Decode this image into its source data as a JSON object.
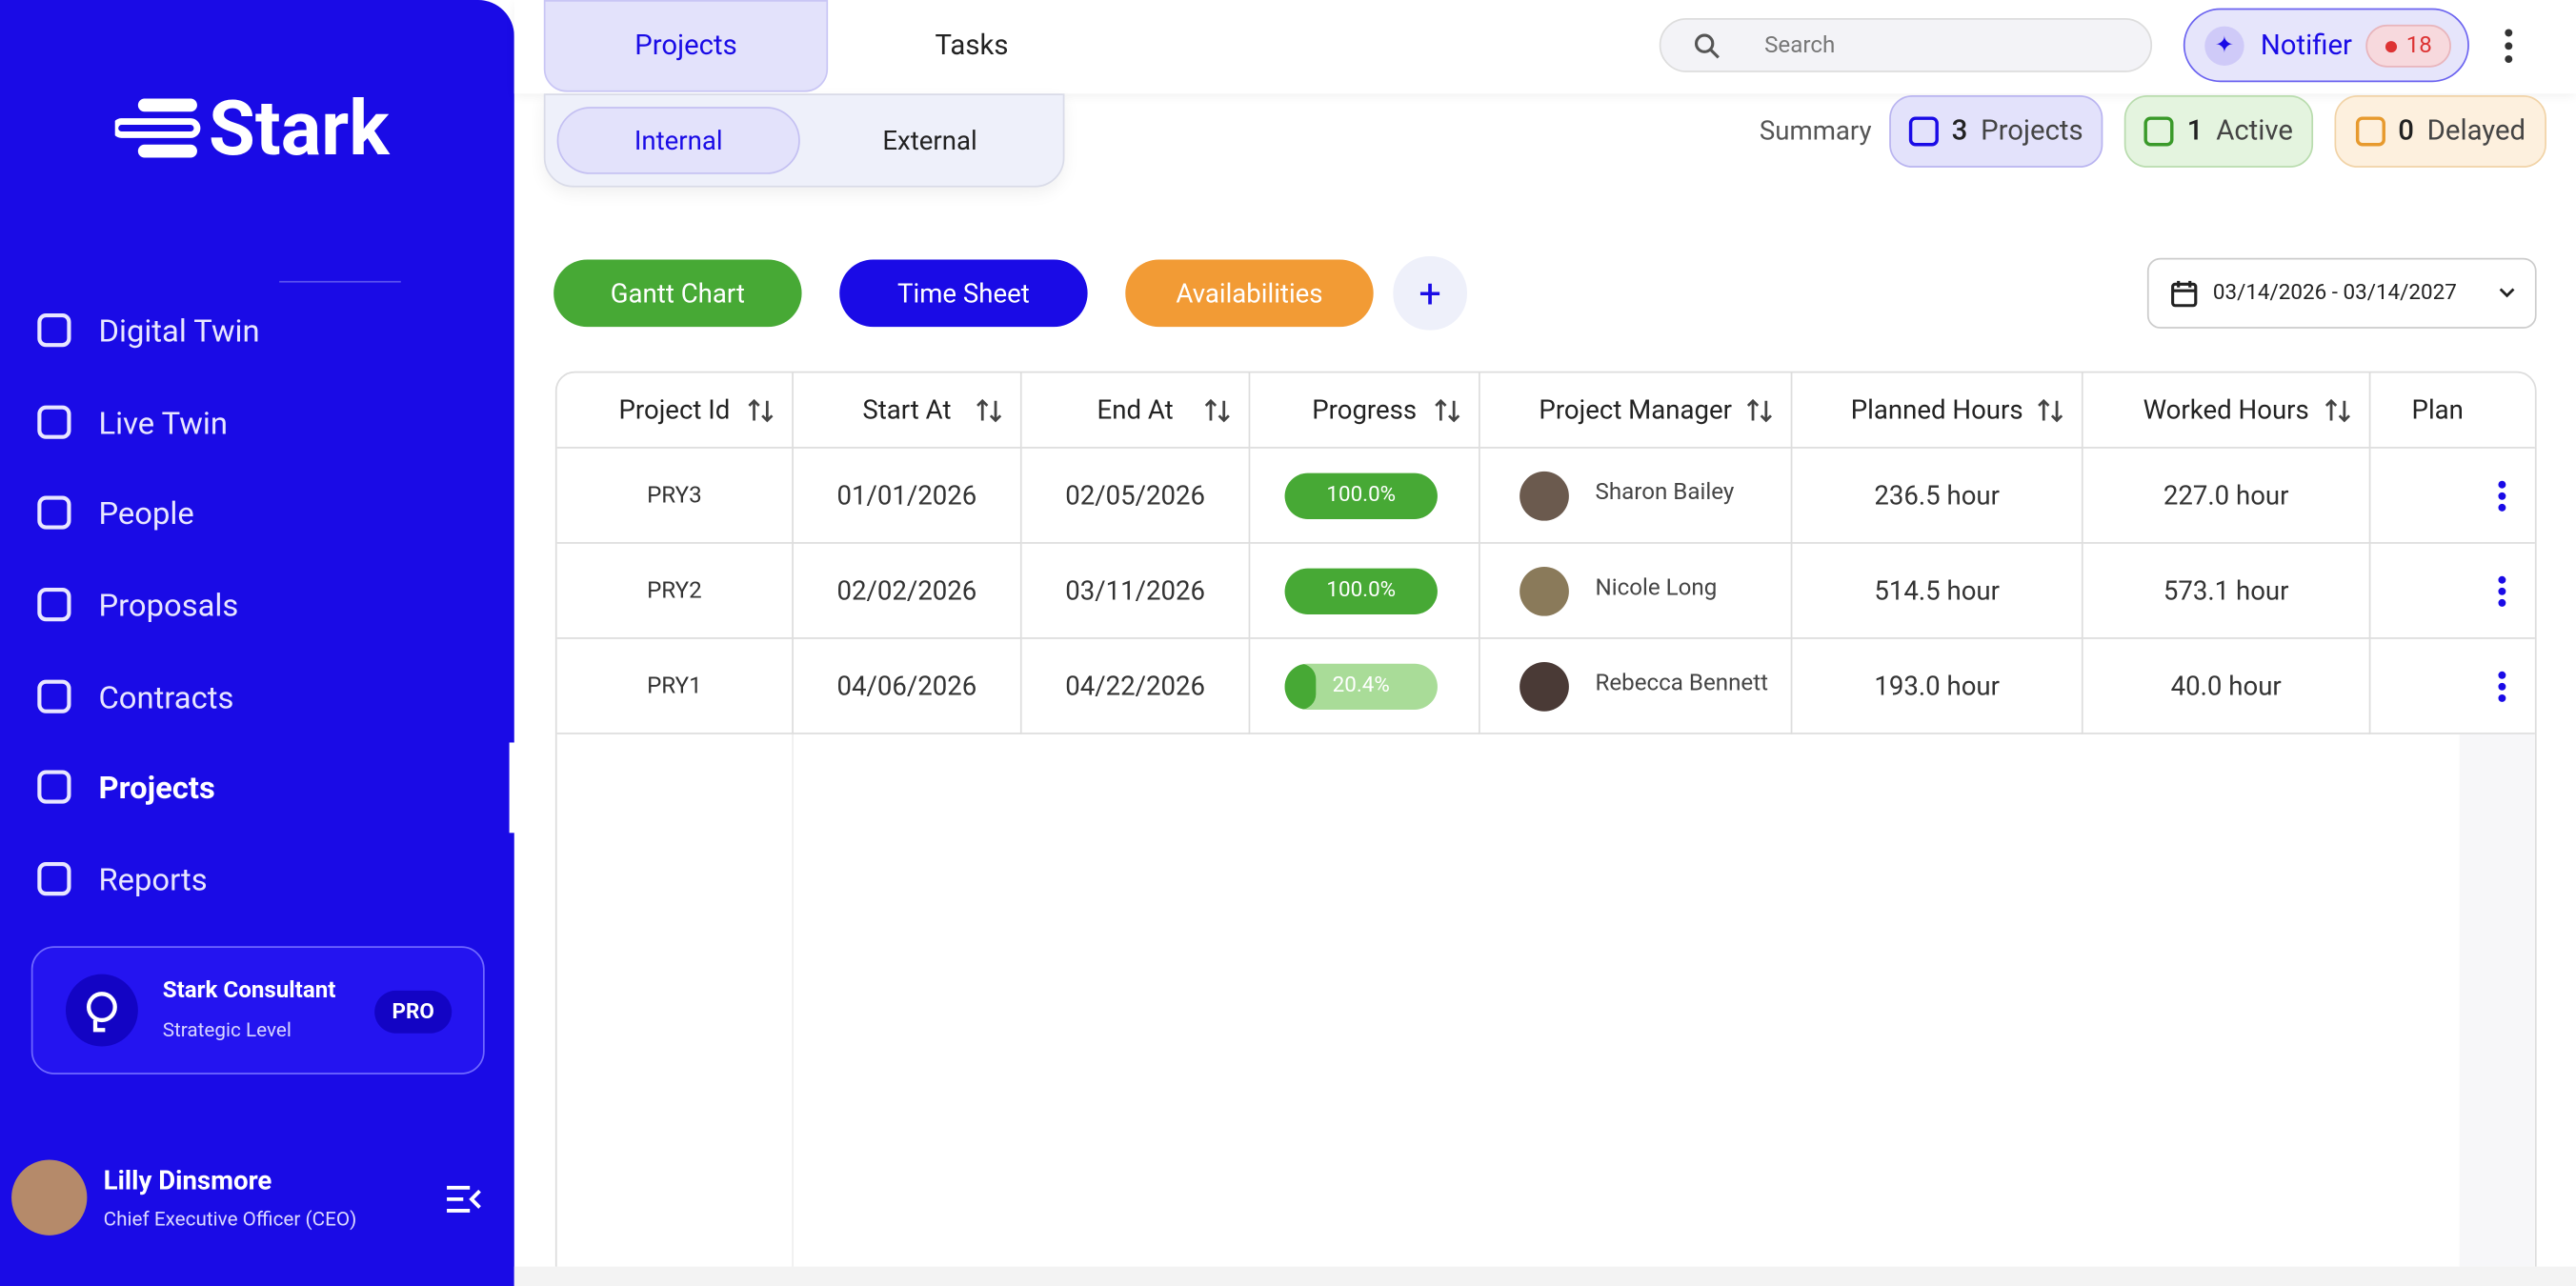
{
  "sidebar": {
    "brand": "Stark",
    "nav": [
      "Digital Twin",
      "Live Twin",
      "People",
      "Proposals",
      "Contracts",
      "Projects",
      "Reports"
    ],
    "active": "Projects",
    "plan": {
      "title": "Stark Consultant",
      "subtitle": "Strategic Level",
      "badge": "PRO"
    },
    "user": {
      "name": "Lilly Dinsmore",
      "role": "Chief Executive Officer (CEO)"
    }
  },
  "topbar": {
    "tabs": [
      "Projects",
      "Tasks"
    ],
    "search_placeholder": "Search",
    "notifier": {
      "label": "Notifier",
      "count": 18
    }
  },
  "subtabs": [
    "Internal",
    "External"
  ],
  "summary": {
    "label": "Summary",
    "items": [
      {
        "count": 3,
        "label": "Projects"
      },
      {
        "count": 1,
        "label": "Active"
      },
      {
        "count": 0,
        "label": "Delayed"
      }
    ]
  },
  "actions": [
    "Gantt Chart",
    "Time Sheet",
    "Availabilities"
  ],
  "date_range": "03/14/2026 - 03/14/2027",
  "table": {
    "columns": [
      "Project Id",
      "Start At",
      "End At",
      "Progress",
      "Project Manager",
      "Planned Hours",
      "Worked Hours",
      "Plan"
    ],
    "rows": [
      [
        "PRY3",
        "01/01/2026",
        "02/05/2026",
        {
          "value": 100.0,
          "label": "100.0%"
        },
        "Sharon Bailey",
        "236.5 hour",
        "227.0 hour"
      ],
      [
        "PRY2",
        "02/02/2026",
        "03/11/2026",
        {
          "value": 100.0,
          "label": "100.0%"
        },
        "Nicole Long",
        "514.5 hour",
        "573.1 hour"
      ],
      [
        "PRY1",
        "04/06/2026",
        "04/22/2026",
        {
          "value": 20.4,
          "label": "20.4%"
        },
        "Rebecca Bennett",
        "193.0 hour",
        "40.0 hour"
      ]
    ]
  }
}
